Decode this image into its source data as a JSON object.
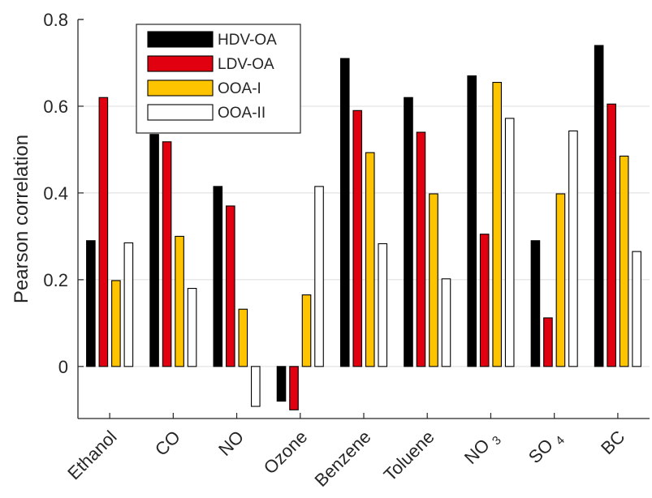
{
  "chart_data": {
    "type": "bar",
    "title": "",
    "xlabel": "",
    "ylabel": "Pearson correlation",
    "ylim": [
      -0.12,
      0.8
    ],
    "yticks": [
      0,
      0.2,
      0.4,
      0.6,
      0.8
    ],
    "ytick_labels": [
      "0",
      "0.2",
      "0.4",
      "0.6",
      "0.8"
    ],
    "grid": "horizontal",
    "legend_position": "top-left",
    "categories": [
      {
        "base": "Ethanol",
        "sub": ""
      },
      {
        "base": "CO",
        "sub": ""
      },
      {
        "base": "NO",
        "sub": ""
      },
      {
        "base": "Ozone",
        "sub": ""
      },
      {
        "base": "Benzene",
        "sub": ""
      },
      {
        "base": "Toluene",
        "sub": ""
      },
      {
        "base": "NO",
        "sub": "3"
      },
      {
        "base": "SO",
        "sub": "4"
      },
      {
        "base": "BC",
        "sub": ""
      }
    ],
    "series": [
      {
        "name": "HDV-OA",
        "color": "#000000",
        "values": [
          0.29,
          0.535,
          0.415,
          -0.08,
          0.71,
          0.62,
          0.67,
          0.29,
          0.74
        ]
      },
      {
        "name": "LDV-OA",
        "color": "#e0000f",
        "values": [
          0.62,
          0.518,
          0.37,
          -0.1,
          0.59,
          0.54,
          0.305,
          0.112,
          0.605
        ]
      },
      {
        "name": "OOA-I",
        "color": "#ffc400",
        "values": [
          0.198,
          0.3,
          0.132,
          0.165,
          0.493,
          0.398,
          0.655,
          0.398,
          0.485
        ]
      },
      {
        "name": "OOA-II",
        "color": "#ffffff",
        "values": [
          0.285,
          0.18,
          -0.092,
          0.415,
          0.283,
          0.202,
          0.572,
          0.543,
          0.265
        ]
      }
    ]
  }
}
